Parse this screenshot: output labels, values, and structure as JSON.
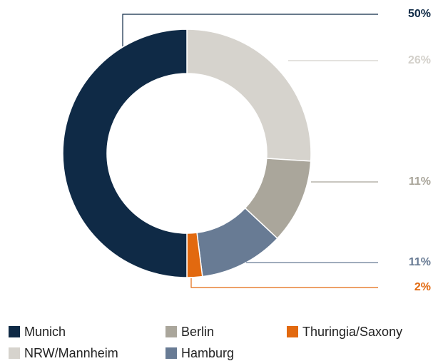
{
  "chart_data": {
    "type": "donut",
    "categories": [
      "NRW/Mannheim",
      "Berlin",
      "Hamburg",
      "Thuringia/Saxony",
      "Munich"
    ],
    "values": [
      26,
      11,
      11,
      2,
      50
    ],
    "value_labels": [
      "26%",
      "11%",
      "11%",
      "2%",
      "50%"
    ],
    "colors": [
      "#d6d3cd",
      "#aaa69b",
      "#687b94",
      "#e2690f",
      "#0f2a46"
    ],
    "label_colors": [
      "#d3d0ca",
      "#a9a59a",
      "#687b94",
      "#e2690f",
      "#0f2a46"
    ]
  }
}
